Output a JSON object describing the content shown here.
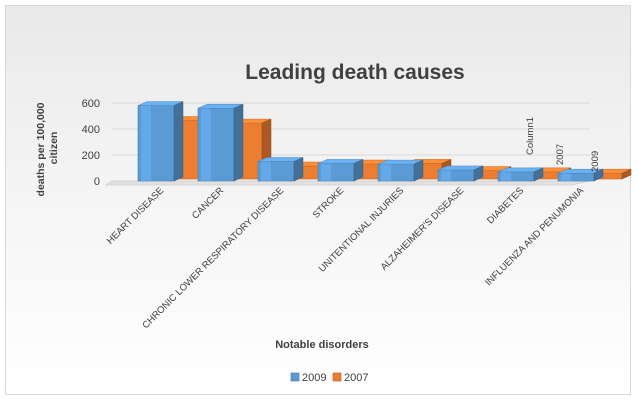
{
  "chart_data": {
    "type": "bar",
    "title": "Leading death causes",
    "xlabel": "Notable disorders",
    "ylabel": "deaths per 100,000 citizen",
    "ylim": [
      0,
      600
    ],
    "yticks": [
      "0",
      "200",
      "400",
      "600"
    ],
    "grid": true,
    "categories": [
      "HEART DISEASE",
      "CANCER",
      "CHRONIC LOWER RESPIRATORY DISEASE",
      "STROKE",
      "UNITENTIONAL INJURIES",
      "ALZAHEIMER'S DISEASE",
      "DIABETES",
      "INFLUENZA AND PENUMONIA"
    ],
    "series": [
      {
        "name": "2009",
        "values": [
          580,
          560,
          150,
          135,
          130,
          85,
          70,
          60
        ],
        "color": "#5b9bd5"
      },
      {
        "name": "2007",
        "values": [
          450,
          430,
          100,
          115,
          120,
          65,
          55,
          45
        ],
        "color": "#ed7d31"
      },
      {
        "name": "Column1",
        "values": [
          0,
          0,
          0,
          0,
          0,
          0,
          0,
          0
        ],
        "color": "#a5a5a5"
      }
    ],
    "depth_axis_labels": [
      "Column1",
      "2007",
      "2009"
    ],
    "legend_position": "bottom",
    "legend": [
      "2009",
      "2007"
    ]
  }
}
